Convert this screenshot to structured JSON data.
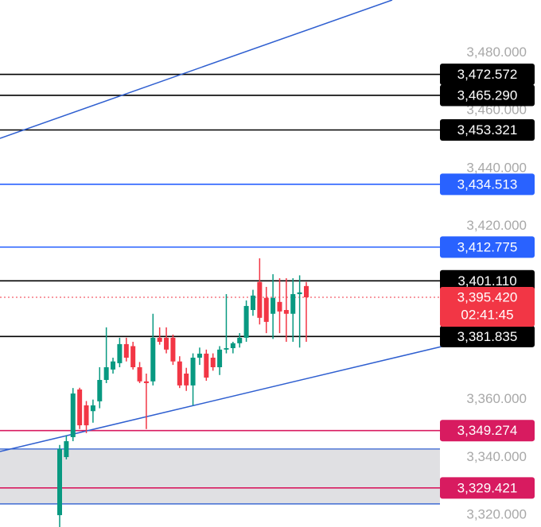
{
  "chart_data": {
    "type": "candlestick",
    "ylim": [
      3315.9,
      3498.3
    ],
    "yticks": [
      {
        "value": 3480,
        "label": "3,480.000"
      },
      {
        "value": 3460,
        "label": "3,460.000"
      },
      {
        "value": 3440,
        "label": "3,440.000"
      },
      {
        "value": 3420,
        "label": "3,420.000"
      },
      {
        "value": 3360,
        "label": "3,360.000"
      },
      {
        "value": 3340,
        "label": "3,340.000"
      },
      {
        "value": 3320,
        "label": "3,320.000"
      }
    ],
    "up_color": "#089981",
    "down_color": "#f23645",
    "candles": [
      {
        "open": 3320,
        "high": 3344.3,
        "low": 3311,
        "close": 3342.9
      },
      {
        "open": 3340.1,
        "high": 3347.6,
        "low": 3339.3,
        "close": 3345.6
      },
      {
        "open": 3347,
        "high": 3364,
        "low": 3345.6,
        "close": 3362.1
      },
      {
        "open": 3363.5,
        "high": 3364.1,
        "low": 3349.8,
        "close": 3351.1
      },
      {
        "open": 3358,
        "high": 3359.5,
        "low": 3348.4,
        "close": 3351.1
      },
      {
        "open": 3356,
        "high": 3360,
        "low": 3352,
        "close": 3358
      },
      {
        "open": 3359.4,
        "high": 3371.2,
        "low": 3357,
        "close": 3366.8
      },
      {
        "open": 3366.8,
        "high": 3385,
        "low": 3365.7,
        "close": 3371.2
      },
      {
        "open": 3370.4,
        "high": 3374.5,
        "low": 3369,
        "close": 3373.2
      },
      {
        "open": 3372.6,
        "high": 3381.4,
        "low": 3371.2,
        "close": 3379.2
      },
      {
        "open": 3379.2,
        "high": 3381.4,
        "low": 3373.2,
        "close": 3374.5
      },
      {
        "open": 3378.5,
        "high": 3380,
        "low": 3370.4,
        "close": 3371.2
      },
      {
        "open": 3371.2,
        "high": 3373,
        "low": 3365.7,
        "close": 3366.3
      },
      {
        "open": 3366.3,
        "high": 3369,
        "low": 3349.8,
        "close": 3365.7
      },
      {
        "open": 3366.3,
        "high": 3389.7,
        "low": 3364.9,
        "close": 3381.4
      },
      {
        "open": 3381.4,
        "high": 3385,
        "low": 3379,
        "close": 3380
      },
      {
        "open": 3381.4,
        "high": 3385,
        "low": 3376,
        "close": 3377.3
      },
      {
        "open": 3381.4,
        "high": 3382.5,
        "low": 3372,
        "close": 3373.2
      },
      {
        "open": 3373.2,
        "high": 3375,
        "low": 3364,
        "close": 3364.9
      },
      {
        "open": 3369,
        "high": 3371,
        "low": 3363,
        "close": 3364.9
      },
      {
        "open": 3364.9,
        "high": 3376,
        "low": 3358,
        "close": 3374.5
      },
      {
        "open": 3374.5,
        "high": 3378,
        "low": 3372,
        "close": 3375.9
      },
      {
        "open": 3375.9,
        "high": 3377.3,
        "low": 3366.5,
        "close": 3367.6
      },
      {
        "open": 3374.5,
        "high": 3376,
        "low": 3370,
        "close": 3371.2
      },
      {
        "open": 3371.2,
        "high": 3378.5,
        "low": 3368.5,
        "close": 3377.3
      },
      {
        "open": 3377.3,
        "high": 3396.5,
        "low": 3376,
        "close": 3377.8
      },
      {
        "open": 3377.8,
        "high": 3380,
        "low": 3376,
        "close": 3379.5
      },
      {
        "open": 3379.5,
        "high": 3383,
        "low": 3378,
        "close": 3381.4
      },
      {
        "open": 3381.4,
        "high": 3394.3,
        "low": 3380,
        "close": 3392.4
      },
      {
        "open": 3391,
        "high": 3398,
        "low": 3389,
        "close": 3396
      },
      {
        "open": 3400.7,
        "high": 3408.9,
        "low": 3386,
        "close": 3388.3
      },
      {
        "open": 3395.2,
        "high": 3399,
        "low": 3383,
        "close": 3386.9
      },
      {
        "open": 3389.7,
        "high": 3403.4,
        "low": 3381,
        "close": 3395.2
      },
      {
        "open": 3393.8,
        "high": 3402,
        "low": 3383,
        "close": 3390.5
      },
      {
        "open": 3391,
        "high": 3402,
        "low": 3380,
        "close": 3389.7
      },
      {
        "open": 3389.7,
        "high": 3402,
        "low": 3380,
        "close": 3396.5
      },
      {
        "open": 3396.5,
        "high": 3403,
        "low": 3378,
        "close": 3397.1
      },
      {
        "open": 3399.3,
        "high": 3400.7,
        "low": 3380,
        "close": 3395.4
      }
    ],
    "zone": {
      "top": 3342.9,
      "bottom": 3323.9,
      "color": "#e0e0e3",
      "edge_color": "#2f5fd0"
    },
    "price_lines": [
      {
        "value": 3472.572,
        "label": "3,472.572",
        "color": "#000000"
      },
      {
        "value": 3465.29,
        "label": "3,465.290",
        "color": "#000000"
      },
      {
        "value": 3453.321,
        "label": "3,453.321",
        "color": "#000000"
      },
      {
        "value": 3434.513,
        "label": "3,434.513",
        "color": "#2962ff"
      },
      {
        "value": 3412.775,
        "label": "3,412.775",
        "color": "#2962ff"
      },
      {
        "value": 3401.11,
        "label": "3,401.110",
        "color": "#000000"
      },
      {
        "value": 3381.835,
        "label": "3,381.835",
        "color": "#000000"
      },
      {
        "value": 3349.274,
        "label": "3,349.274",
        "color": "#d81b60"
      },
      {
        "value": 3329.421,
        "label": "3,329.421",
        "color": "#d81b60"
      }
    ],
    "current_price": {
      "value": 3395.42,
      "label": "3,395.420",
      "countdown": "02:41:45",
      "color": "#f23645"
    }
  }
}
